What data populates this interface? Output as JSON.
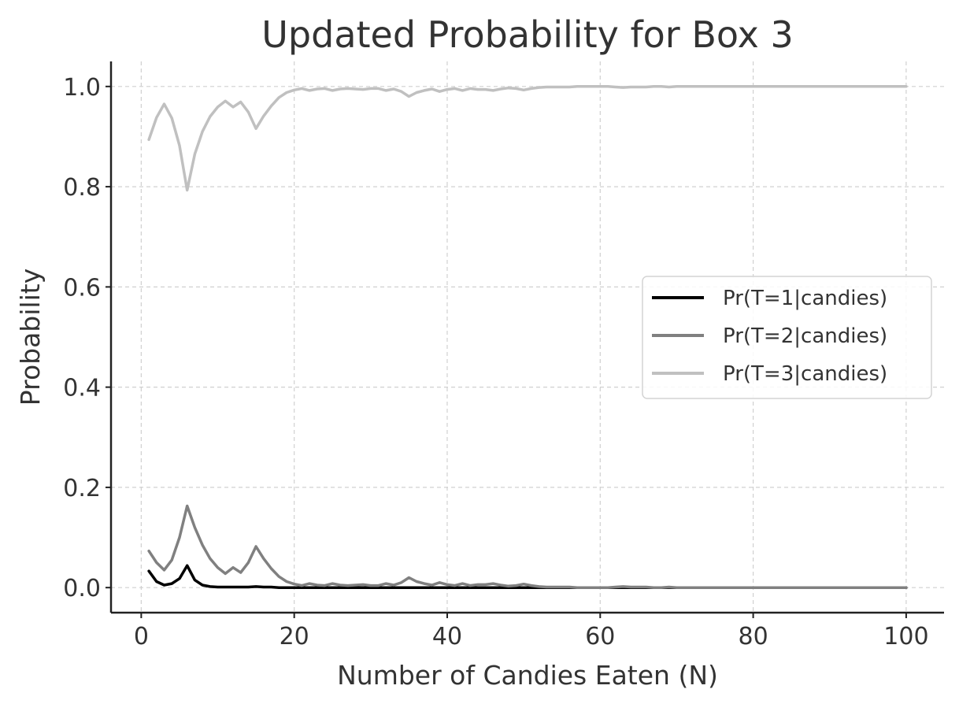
{
  "chart_data": {
    "type": "line",
    "title": "Updated Probability for Box 3",
    "xlabel": "Number of Candies Eaten (N)",
    "ylabel": "Probability",
    "xlim": [
      -3.95,
      104.95
    ],
    "ylim": [
      -0.05,
      1.05
    ],
    "xticks": [
      0,
      20,
      40,
      60,
      80,
      100
    ],
    "xtick_labels": [
      "0",
      "20",
      "40",
      "60",
      "80",
      "100"
    ],
    "yticks": [
      0.0,
      0.2,
      0.4,
      0.6,
      0.8,
      1.0
    ],
    "ytick_labels": [
      "0.0",
      "0.2",
      "0.4",
      "0.6",
      "0.8",
      "1.0"
    ],
    "grid": true,
    "legend_position": "center-right",
    "x": [
      1,
      2,
      3,
      4,
      5,
      6,
      7,
      8,
      9,
      10,
      11,
      12,
      13,
      14,
      15,
      16,
      17,
      18,
      19,
      20,
      21,
      22,
      23,
      24,
      25,
      26,
      27,
      28,
      29,
      30,
      31,
      32,
      33,
      34,
      35,
      36,
      37,
      38,
      39,
      40,
      41,
      42,
      43,
      44,
      45,
      46,
      47,
      48,
      49,
      50,
      51,
      52,
      53,
      54,
      55,
      56,
      57,
      58,
      59,
      60,
      61,
      62,
      63,
      64,
      65,
      66,
      67,
      68,
      69,
      70,
      71,
      72,
      73,
      74,
      75,
      76,
      77,
      78,
      79,
      80,
      81,
      82,
      83,
      84,
      85,
      86,
      87,
      88,
      89,
      90,
      91,
      92,
      93,
      94,
      95,
      96,
      97,
      98,
      99,
      100
    ],
    "series": [
      {
        "name": "Pr(T=1|candies)",
        "color": "#000000",
        "values": [
          0.033,
          0.012,
          0.005,
          0.008,
          0.018,
          0.044,
          0.015,
          0.005,
          0.002,
          0.001,
          0.001,
          0.001,
          0.001,
          0.001,
          0.002,
          0.001,
          0.001,
          0,
          0,
          0,
          0,
          0,
          0,
          0,
          0,
          0,
          0,
          0,
          0,
          0,
          0,
          0,
          0,
          0,
          0,
          0,
          0,
          0,
          0,
          0,
          0,
          0,
          0,
          0,
          0,
          0,
          0,
          0,
          0,
          0,
          0,
          0,
          0,
          0,
          0,
          0,
          0,
          0,
          0,
          0,
          0,
          0,
          0,
          0,
          0,
          0,
          0,
          0,
          0,
          0,
          0,
          0,
          0,
          0,
          0,
          0,
          0,
          0,
          0,
          0,
          0,
          0,
          0,
          0,
          0,
          0,
          0,
          0,
          0,
          0,
          0,
          0,
          0,
          0,
          0,
          0,
          0,
          0,
          0,
          0
        ]
      },
      {
        "name": "Pr(T=2|candies)",
        "color": "#808080",
        "values": [
          0.073,
          0.05,
          0.035,
          0.055,
          0.1,
          0.163,
          0.12,
          0.085,
          0.058,
          0.04,
          0.028,
          0.04,
          0.03,
          0.05,
          0.082,
          0.058,
          0.038,
          0.022,
          0.012,
          0.007,
          0.004,
          0.008,
          0.005,
          0.004,
          0.008,
          0.005,
          0.004,
          0.005,
          0.006,
          0.004,
          0.004,
          0.008,
          0.005,
          0.01,
          0.02,
          0.012,
          0.008,
          0.005,
          0.01,
          0.006,
          0.004,
          0.008,
          0.004,
          0.006,
          0.006,
          0.008,
          0.005,
          0.003,
          0.004,
          0.007,
          0.004,
          0.002,
          0.001,
          0.001,
          0.001,
          0.001,
          0,
          0,
          0,
          0,
          0,
          0.001,
          0.002,
          0.001,
          0.001,
          0.001,
          0,
          0,
          0.001,
          0,
          0,
          0,
          0,
          0,
          0,
          0,
          0,
          0,
          0,
          0,
          0,
          0,
          0,
          0,
          0,
          0,
          0,
          0,
          0,
          0,
          0,
          0,
          0,
          0,
          0,
          0,
          0,
          0,
          0,
          0
        ]
      },
      {
        "name": "Pr(T=3|candies)",
        "color": "#c0c0c0",
        "values": [
          0.894,
          0.938,
          0.965,
          0.937,
          0.882,
          0.793,
          0.865,
          0.91,
          0.94,
          0.959,
          0.971,
          0.959,
          0.969,
          0.949,
          0.916,
          0.941,
          0.961,
          0.978,
          0.988,
          0.993,
          0.996,
          0.992,
          0.995,
          0.996,
          0.992,
          0.995,
          0.996,
          0.995,
          0.994,
          0.996,
          0.996,
          0.992,
          0.995,
          0.99,
          0.98,
          0.988,
          0.992,
          0.995,
          0.99,
          0.994,
          0.996,
          0.992,
          0.996,
          0.994,
          0.994,
          0.992,
          0.995,
          0.997,
          0.996,
          0.993,
          0.996,
          0.998,
          0.999,
          0.999,
          0.999,
          0.999,
          1.0,
          1.0,
          1.0,
          1.0,
          1.0,
          0.999,
          0.998,
          0.999,
          0.999,
          0.999,
          1.0,
          1.0,
          0.999,
          1.0,
          1.0,
          1.0,
          1.0,
          1.0,
          1.0,
          1.0,
          1.0,
          1.0,
          1.0,
          1.0,
          1.0,
          1.0,
          1.0,
          1.0,
          1.0,
          1.0,
          1.0,
          1.0,
          1.0,
          1.0,
          1.0,
          1.0,
          1.0,
          1.0,
          1.0,
          1.0,
          1.0,
          1.0,
          1.0,
          1.0
        ]
      }
    ]
  }
}
